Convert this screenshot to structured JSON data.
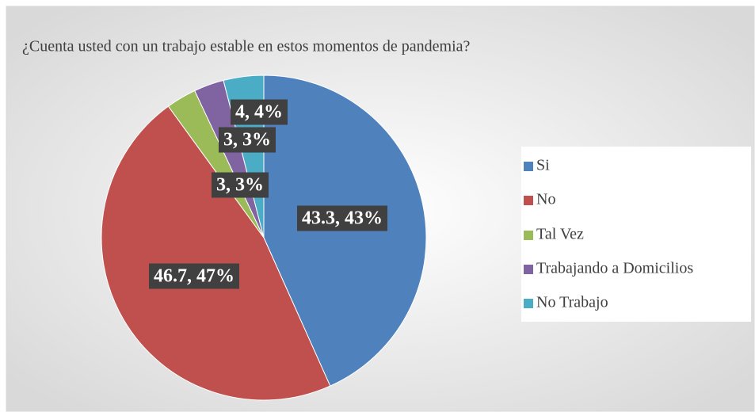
{
  "chart_data": {
    "type": "pie",
    "title": "¿Cuenta usted con un trabajo estable en estos momentos de pandemia?",
    "categories": [
      "Si",
      "No",
      "Tal Vez",
      "Trabajando a Domicilios",
      "No Trabajo"
    ],
    "values": [
      43.3,
      46.7,
      3,
      3,
      4
    ],
    "value_labels": [
      "43.3, 43%",
      "46.7, 47%",
      "3, 3%",
      "3, 3%",
      "4, 4%"
    ],
    "colors": [
      "#4f81bd",
      "#c0504d",
      "#9bbb59",
      "#8064a2",
      "#4bacc6"
    ],
    "legend": "right"
  }
}
